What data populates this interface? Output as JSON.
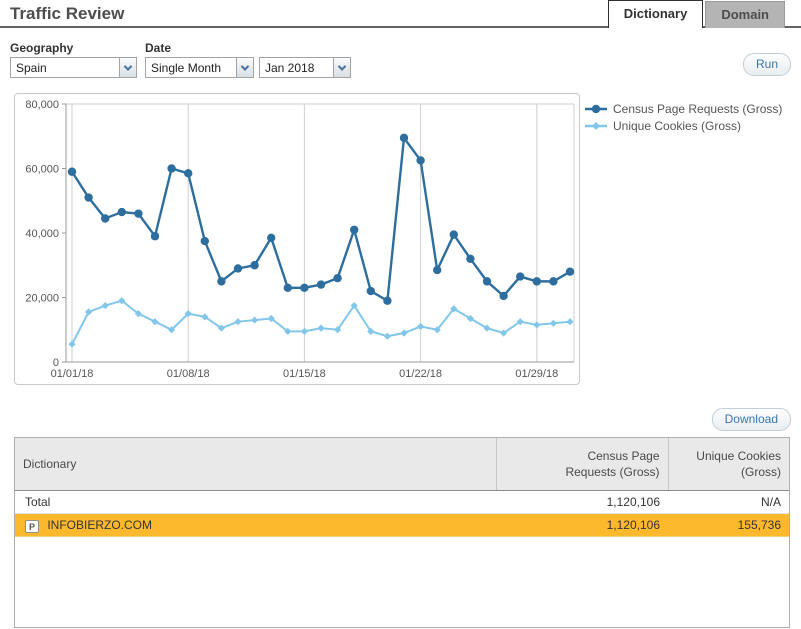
{
  "header": {
    "title": "Traffic Review",
    "tabs": [
      {
        "label": "Dictionary",
        "active": true
      },
      {
        "label": "Domain",
        "active": false
      }
    ]
  },
  "filters": {
    "geography_label": "Geography",
    "geography_value": "Spain",
    "date_label": "Date",
    "date_type_value": "Single Month",
    "date_month_value": "Jan 2018",
    "run_label": "Run"
  },
  "chart_data": {
    "type": "line",
    "x_unit": "day of January 2018",
    "x": [
      1,
      2,
      3,
      4,
      5,
      6,
      7,
      8,
      9,
      10,
      11,
      12,
      13,
      14,
      15,
      16,
      17,
      18,
      19,
      20,
      21,
      22,
      23,
      24,
      25,
      26,
      27,
      28,
      29,
      30,
      31
    ],
    "xticks": [
      "01/01/18",
      "01/08/18",
      "01/15/18",
      "01/22/18",
      "01/29/18"
    ],
    "xtick_day_indices": [
      0,
      7,
      14,
      21,
      28
    ],
    "yticks": [
      "0",
      "20,000",
      "40,000",
      "60,000",
      "80,000"
    ],
    "ytick_values": [
      0,
      20000,
      40000,
      60000,
      80000
    ],
    "ylim": [
      0,
      80000
    ],
    "grid": "weekly vertical gridlines, top boundary line, no interior horizontal gridlines",
    "legend_position": "right-top",
    "series": [
      {
        "name": "Census Page Requests (Gross)",
        "color": "#2e6e9e",
        "marker": "circle",
        "values": [
          59000,
          51000,
          44500,
          46500,
          46000,
          39000,
          60000,
          58500,
          37500,
          25000,
          29000,
          30000,
          38500,
          23000,
          23000,
          24000,
          26000,
          41000,
          22000,
          19000,
          69500,
          62500,
          28500,
          39500,
          32000,
          25000,
          20500,
          26500,
          25000,
          25000,
          28000
        ]
      },
      {
        "name": "Unique Cookies (Gross)",
        "color": "#82c6ea",
        "marker": "diamond",
        "values": [
          5500,
          15500,
          17500,
          19000,
          15000,
          12500,
          10000,
          15000,
          14000,
          10500,
          12500,
          13000,
          13500,
          9500,
          9500,
          10500,
          10000,
          17500,
          9500,
          8000,
          9000,
          11000,
          10000,
          16500,
          13500,
          10500,
          9000,
          12500,
          11500,
          12000,
          12500
        ]
      }
    ]
  },
  "download_label": "Download",
  "table": {
    "columns": [
      "Dictionary",
      "Census Page Requests (Gross)",
      "Unique Cookies (Gross)"
    ],
    "rows": [
      {
        "label": "Total",
        "census": "1,120,106",
        "cookies": "N/A",
        "highlighted": false
      },
      {
        "label": "INFOBIERZO.COM",
        "icon": "P",
        "census": "1,120,106",
        "cookies": "155,736",
        "highlighted": true
      }
    ]
  },
  "colors": {
    "series_dark_blue": "#2e6e9e",
    "series_light_blue": "#82c6ea",
    "highlight_orange": "#fdb92e",
    "button_text_blue": "#3a77ad",
    "table_header_gray": "#e9e9e9"
  }
}
